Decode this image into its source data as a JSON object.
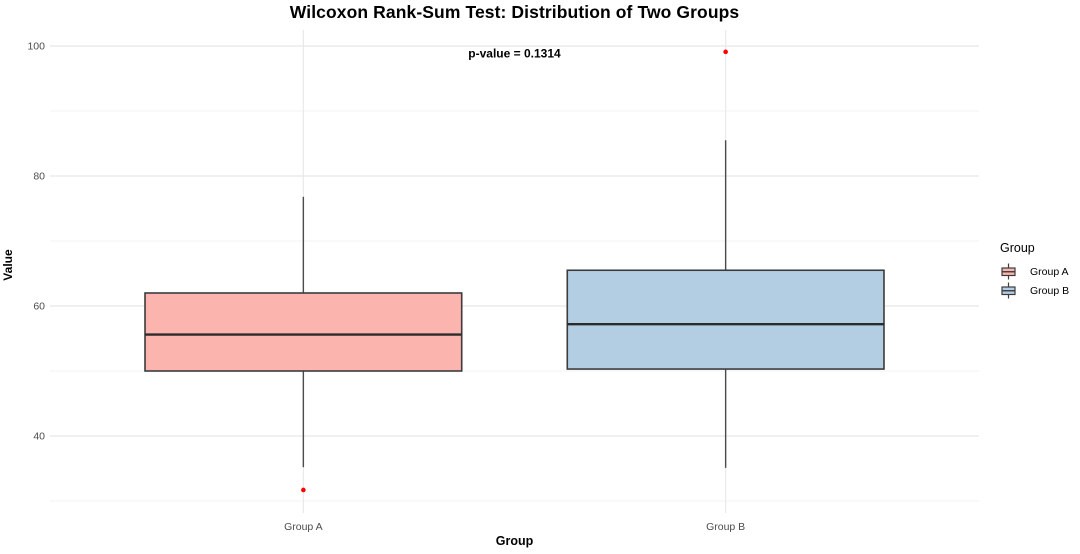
{
  "chart_data": {
    "type": "boxplot",
    "title": "Wilcoxon Rank-Sum Test: Distribution of Two Groups",
    "annotation": "p-value = 0.1314",
    "xlabel": "Group",
    "ylabel": "Value",
    "categories": [
      "Group A",
      "Group B"
    ],
    "y_ticks": [
      40,
      60,
      80,
      100
    ],
    "y_minor_ticks": [
      30,
      50,
      70,
      90
    ],
    "ylim": [
      28.2,
      102.5
    ],
    "outlier_color": "#FF0000",
    "series": [
      {
        "name": "Group A",
        "fill": "#FBB4AE",
        "lower_whisker": 35.2,
        "q1": 50.0,
        "median": 55.6,
        "q3": 62.0,
        "upper_whisker": 76.8,
        "outliers": [
          31.7
        ]
      },
      {
        "name": "Group B",
        "fill": "#B3CDE3",
        "lower_whisker": 35.1,
        "q1": 50.3,
        "median": 57.2,
        "q3": 65.5,
        "upper_whisker": 85.5,
        "outliers": [
          99.1
        ]
      }
    ],
    "legend": {
      "title": "Group",
      "entries": [
        {
          "label": "Group A",
          "fill": "#FBB4AE"
        },
        {
          "label": "Group B",
          "fill": "#B3CDE3"
        }
      ]
    }
  }
}
